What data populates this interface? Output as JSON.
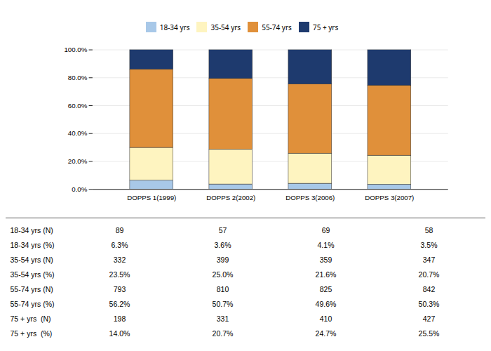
{
  "chart_data": {
    "type": "bar",
    "stacked": true,
    "categories": [
      "DOPPS 1(1999)",
      "DOPPS 2(2002)",
      "DOPPS 3(2006)",
      "DOPPS 3(2007)"
    ],
    "series": [
      {
        "name": "18-34 yrs",
        "color": "#a8c8e8",
        "values": [
          6.3,
          3.6,
          4.1,
          3.5
        ]
      },
      {
        "name": "35-54 yrs",
        "color": "#fef4c0",
        "values": [
          23.5,
          25.0,
          21.6,
          20.7
        ]
      },
      {
        "name": "55-74 yrs",
        "color": "#e0903a",
        "values": [
          56.2,
          50.7,
          49.6,
          50.3
        ]
      },
      {
        "name": "75 + yrs",
        "color": "#1e3a6e",
        "values": [
          14.0,
          20.7,
          24.7,
          25.5
        ]
      }
    ],
    "ylim": [
      0,
      100
    ],
    "yticks": [
      {
        "value": 0,
        "label": "0.0%"
      },
      {
        "value": 20,
        "label": "20.0%"
      },
      {
        "value": 40,
        "label": "40.0%"
      },
      {
        "value": 60,
        "label": "60.0%"
      },
      {
        "value": 80,
        "label": "80.0%"
      },
      {
        "value": 100,
        "label": "100.0%"
      }
    ],
    "grid": true,
    "legend": "top",
    "table_rows": [
      [
        "18-34 yrs (N)",
        "89",
        "57",
        "69",
        "58"
      ],
      [
        "18-34 yrs (%)",
        "6.3%",
        "3.6%",
        "4.1%",
        "3.5%"
      ],
      [
        "35-54 yrs (N)",
        "332",
        "399",
        "359",
        "347"
      ],
      [
        "35-54 yrs (%)",
        "23.5%",
        "25.0%",
        "21.6%",
        "20.7%"
      ],
      [
        "55-74 yrs (N)",
        "793",
        "810",
        "825",
        "842"
      ],
      [
        "55-74 yrs (%)",
        "56.2%",
        "50.7%",
        "49.6%",
        "50.3%"
      ],
      [
        "75 + yrs  (N)",
        "198",
        "331",
        "410",
        "427"
      ],
      [
        "75 + yrs  (%)",
        "14.0%",
        "20.7%",
        "24.7%",
        "25.5%"
      ]
    ]
  }
}
